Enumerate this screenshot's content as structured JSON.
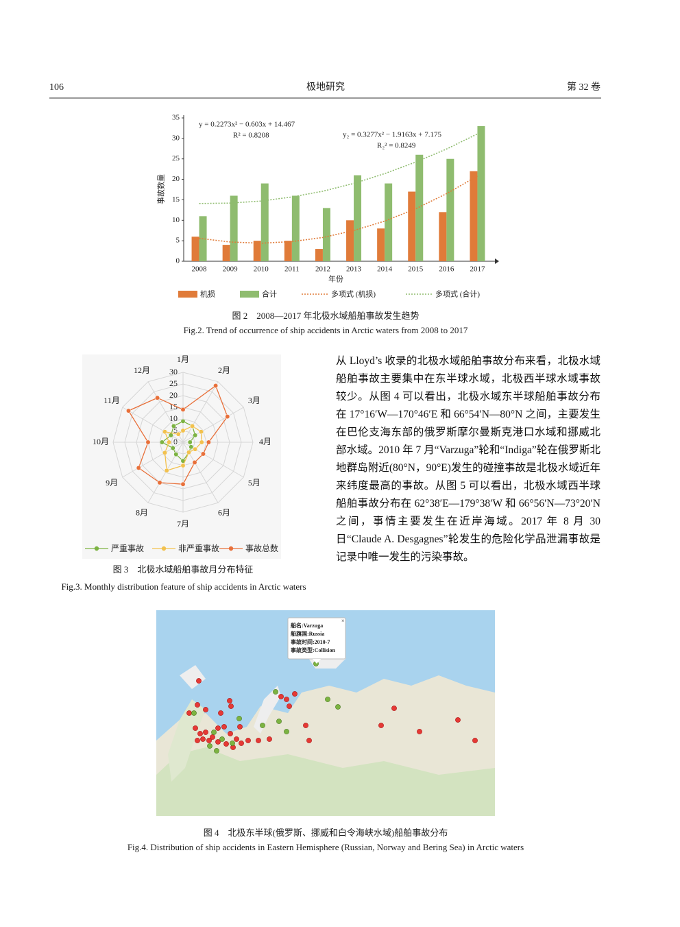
{
  "header": {
    "page_number": "106",
    "journal": "极地研究",
    "volume": "第 32 卷"
  },
  "chart_data": [
    {
      "type": "bar",
      "categories": [
        "2008",
        "2009",
        "2010",
        "2011",
        "2012",
        "2013",
        "2014",
        "2015",
        "2016",
        "2017"
      ],
      "series": [
        {
          "name": "机损",
          "color": "#e07b39",
          "values": [
            6,
            4,
            5,
            5,
            3,
            10,
            8,
            17,
            12,
            22
          ]
        },
        {
          "name": "合计",
          "color": "#8fbc6f",
          "values": [
            11,
            16,
            19,
            16,
            13,
            21,
            19,
            26,
            25,
            33
          ]
        },
        {
          "name": "多项式 (机损)",
          "type": "line",
          "dashed": true,
          "color": "#e07b39",
          "values": [
            5.6,
            4.7,
            4.4,
            4.8,
            5.8,
            7.5,
            9.8,
            12.8,
            16.5,
            20.8
          ]
        },
        {
          "name": "多项式 (合计)",
          "type": "line",
          "dashed": true,
          "color": "#8fbc6f",
          "values": [
            14.1,
            14.2,
            14.7,
            15.7,
            17.1,
            19.0,
            21.4,
            24.2,
            27.4,
            31.1
          ]
        }
      ],
      "ylim": [
        0,
        35
      ],
      "yticks": [
        0,
        5,
        10,
        15,
        20,
        25,
        30,
        35
      ],
      "xlabel": "年份",
      "ylabel": "事故数量",
      "annotations": [
        "y = 0.2273x² − 0.603x + 14.467",
        "R² = 0.8208",
        "y₂ = 0.3277x² − 1.9163x + 7.175",
        "R₂² = 0.8249"
      ]
    },
    {
      "type": "radar",
      "categories": [
        "1月",
        "2月",
        "3月",
        "4月",
        "5月",
        "6月",
        "7月",
        "8月",
        "9月",
        "10月",
        "11月",
        "12月"
      ],
      "series": [
        {
          "name": "严重事故",
          "color": "#7cb342",
          "values": [
            9,
            8,
            6,
            3,
            4,
            5,
            8,
            6,
            5,
            9,
            6,
            8
          ]
        },
        {
          "name": "非严重事故",
          "color": "#f2c14e",
          "values": [
            5,
            8,
            9,
            8,
            6,
            5,
            10,
            14,
            9,
            6,
            9,
            4
          ]
        },
        {
          "name": "事故总数",
          "color": "#e8703a",
          "values": [
            14,
            28,
            22,
            11,
            10,
            10,
            18,
            20,
            22,
            15,
            27,
            22
          ]
        }
      ],
      "rlim": [
        0,
        30
      ],
      "rticks": [
        0,
        5,
        10,
        15,
        20,
        25,
        30
      ]
    }
  ],
  "figures": [
    {
      "caption_zh": "图 2　2008—2017 年北极水域船舶事故发生趋势",
      "caption_en": "Fig.2. Trend of occurrence of ship accidents in Arctic waters from 2008 to 2017"
    },
    {
      "caption_zh": "图 3　北极水域船舶事故月分布特征",
      "caption_en": "Fig.3. Monthly distribution feature of ship accidents in Arctic waters"
    },
    {
      "caption_zh": "图 4　北极东半球(俄罗斯、挪威和白令海峡水域)船舶事故分布",
      "caption_en": "Fig.4. Distribution of ship accidents in Eastern Hemisphere (Russian, Norway and Bering Sea) in Arctic waters"
    }
  ],
  "body_text": "从 Lloyd’s 收录的北极水域船舶事故分布来看，北极水域船舶事故主要集中在东半球水域，北极西半球水域事故较少。从图 4 可以看出，北极水域东半球船舶事故分布在 17°16′W—170°46′E 和 66°54′N—80°N 之间，主要发生在巴伦支海东部的俄罗斯摩尔曼斯克港口水域和挪威北部水域。2010 年 7 月“Varzuga”轮和“Indiga”轮在俄罗斯北地群岛附近(80°N，90°E)发生的碰撞事故是北极水域近年来纬度最高的事故。从图 5 可以看出，北极水域西半球船舶事故分布在 62°38′E—179°38′W 和 66°56′N—73°20′N 之间，事情主要发生在近岸海域。2017 年 8 月 30 日“Claude A. Desgagnes”轮发生的危险化学品泄漏事故是记录中唯一发生的污染事故。",
  "map": {
    "popup": [
      "船名:Varzuga",
      "船旗国:Russia",
      "事故时间:2010-7",
      "事故类型:Collision"
    ]
  }
}
